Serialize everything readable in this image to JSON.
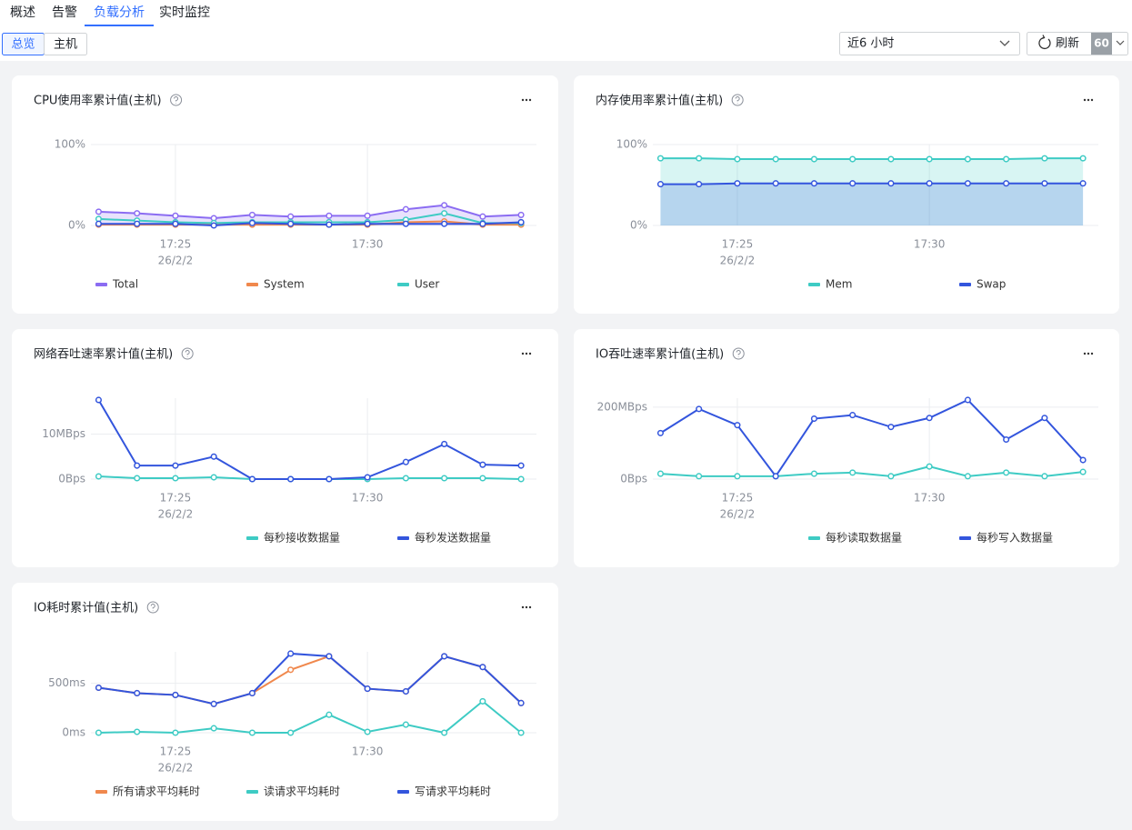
{
  "tabs": [
    "概述",
    "告警",
    "负载分析",
    "实时监控"
  ],
  "active_tab": 2,
  "view_buttons": [
    "总览",
    "主机"
  ],
  "active_view": 0,
  "time_range": "近6 小时",
  "refresh": "刷新",
  "refresh_interval": "60",
  "chart_data": [
    {
      "type": "line",
      "title": "CPU使用率累计值(主机)",
      "x": [
        1043,
        1044,
        1045,
        1046,
        1047,
        1048,
        1049,
        1050,
        1051,
        1052,
        1053,
        1054
      ],
      "xlim": [
        1042.8,
        1054.4
      ],
      "xticks": [
        {
          "value": 1045,
          "label": "17:25",
          "sublabel": "26/2/2"
        },
        {
          "value": 1050,
          "label": "17:30"
        }
      ],
      "ylim": [
        0,
        100
      ],
      "yticks": [
        {
          "value": 0,
          "label": "0%"
        },
        {
          "value": 100,
          "label": "100%"
        }
      ],
      "grid": true,
      "series": [
        {
          "name": "Total",
          "color": "#8b6cf2",
          "area": true,
          "values": [
            17,
            15,
            12,
            9,
            13,
            11,
            12,
            12,
            20,
            25,
            11,
            13
          ]
        },
        {
          "name": "System",
          "color": "#f0884d",
          "values": [
            1,
            1,
            1,
            1,
            1,
            1,
            1,
            1,
            4,
            5,
            1,
            1
          ]
        },
        {
          "name": "User",
          "color": "#3ecbc4",
          "values": [
            8,
            6,
            4,
            3,
            4,
            4,
            4,
            4,
            7,
            15,
            3,
            3
          ]
        },
        {
          "color": "#3355dd",
          "values": [
            2,
            2,
            2,
            0,
            3,
            2,
            1,
            2,
            2,
            2,
            2,
            4
          ]
        }
      ]
    },
    {
      "type": "line",
      "title": "内存使用率累计值(主机)",
      "x": [
        1043,
        1044,
        1045,
        1046,
        1047,
        1048,
        1049,
        1050,
        1051,
        1052,
        1053,
        1054
      ],
      "xlim": [
        1042.8,
        1054.4
      ],
      "xticks": [
        {
          "value": 1045,
          "label": "17:25",
          "sublabel": "26/2/2"
        },
        {
          "value": 1050,
          "label": "17:30"
        }
      ],
      "ylim": [
        0,
        100
      ],
      "yticks": [
        {
          "value": 0,
          "label": "0%"
        },
        {
          "value": 100,
          "label": "100%"
        }
      ],
      "grid": true,
      "series": [
        {
          "name": "Mem",
          "color": "#3ecbc4",
          "area": true,
          "values": [
            83,
            83,
            82,
            82,
            82,
            82,
            82,
            82,
            82,
            82,
            83,
            83
          ]
        },
        {
          "name": "Swap",
          "color": "#3355dd",
          "area": true,
          "values": [
            51,
            51,
            52,
            52,
            52,
            52,
            52,
            52,
            52,
            52,
            52,
            52
          ]
        }
      ]
    },
    {
      "type": "line",
      "title": "网络吞吐速率累计值(主机)",
      "x": [
        1043,
        1044,
        1045,
        1046,
        1047,
        1048,
        1049,
        1050,
        1051,
        1052,
        1053,
        1054
      ],
      "xlim": [
        1042.8,
        1054.4
      ],
      "xticks": [
        {
          "value": 1045,
          "label": "17:25",
          "sublabel": "26/2/2"
        },
        {
          "value": 1050,
          "label": "17:30"
        }
      ],
      "ylim": [
        0,
        18
      ],
      "yticks": [
        {
          "value": 0,
          "label": "0Bps"
        },
        {
          "value": 10,
          "label": "10MBps"
        }
      ],
      "grid": true,
      "series": [
        {
          "name": "每秒接收数据量",
          "color": "#3ecbc4",
          "values": [
            0.6,
            0.2,
            0.2,
            0.4,
            0,
            0,
            0,
            0,
            0.2,
            0.2,
            0.2,
            0
          ]
        },
        {
          "name": "每秒发送数据量",
          "color": "#3355dd",
          "values": [
            17.6,
            3,
            3,
            5,
            0,
            0,
            0,
            0.4,
            3.8,
            7.8,
            3.2,
            3
          ]
        }
      ]
    },
    {
      "type": "line",
      "title": "IO吞吐速率累计值(主机)",
      "x": [
        1043,
        1044,
        1045,
        1046,
        1047,
        1048,
        1049,
        1050,
        1051,
        1052,
        1053,
        1054
      ],
      "xlim": [
        1042.8,
        1054.4
      ],
      "xticks": [
        {
          "value": 1045,
          "label": "17:25",
          "sublabel": "26/2/2"
        },
        {
          "value": 1050,
          "label": "17:30"
        }
      ],
      "ylim": [
        0,
        225
      ],
      "yticks": [
        {
          "value": 0,
          "label": "0Bps"
        },
        {
          "value": 200,
          "label": "200MBps"
        }
      ],
      "grid": true,
      "series": [
        {
          "name": "每秒读取数据量",
          "color": "#3ecbc4",
          "values": [
            15,
            8,
            8,
            8,
            15,
            18,
            8,
            35,
            8,
            18,
            8,
            20
          ]
        },
        {
          "name": "每秒写入数据量",
          "color": "#3355dd",
          "values": [
            128,
            195,
            150,
            8,
            168,
            178,
            145,
            170,
            220,
            110,
            170,
            53
          ]
        }
      ]
    },
    {
      "type": "line",
      "title": "IO耗时累计值(主机)",
      "x": [
        1043,
        1044,
        1045,
        1046,
        1047,
        1048,
        1049,
        1050,
        1051,
        1052,
        1053,
        1054
      ],
      "xlim": [
        1042.8,
        1054.4
      ],
      "xticks": [
        {
          "value": 1045,
          "label": "17:25",
          "sublabel": "26/2/2"
        },
        {
          "value": 1050,
          "label": "17:30"
        }
      ],
      "ylim": [
        0,
        818
      ],
      "yticks": [
        {
          "value": 0,
          "label": "0ms"
        },
        {
          "value": 500,
          "label": "500ms"
        }
      ],
      "grid": true,
      "series": [
        {
          "name": "所有请求平均耗时",
          "color": "#f0884d",
          "values": [
            455,
            400,
            382,
            291,
            400,
            636,
            773,
            445,
            418,
            773,
            664,
            300
          ]
        },
        {
          "name": "读请求平均耗时",
          "color": "#3ecbc4",
          "values": [
            0,
            9,
            0,
            45,
            0,
            0,
            182,
            9,
            82,
            0,
            318,
            0
          ]
        },
        {
          "name": "写请求平均耗时",
          "color": "#3355dd",
          "values": [
            455,
            400,
            382,
            291,
            400,
            800,
            773,
            445,
            418,
            773,
            664,
            300
          ]
        }
      ]
    }
  ]
}
